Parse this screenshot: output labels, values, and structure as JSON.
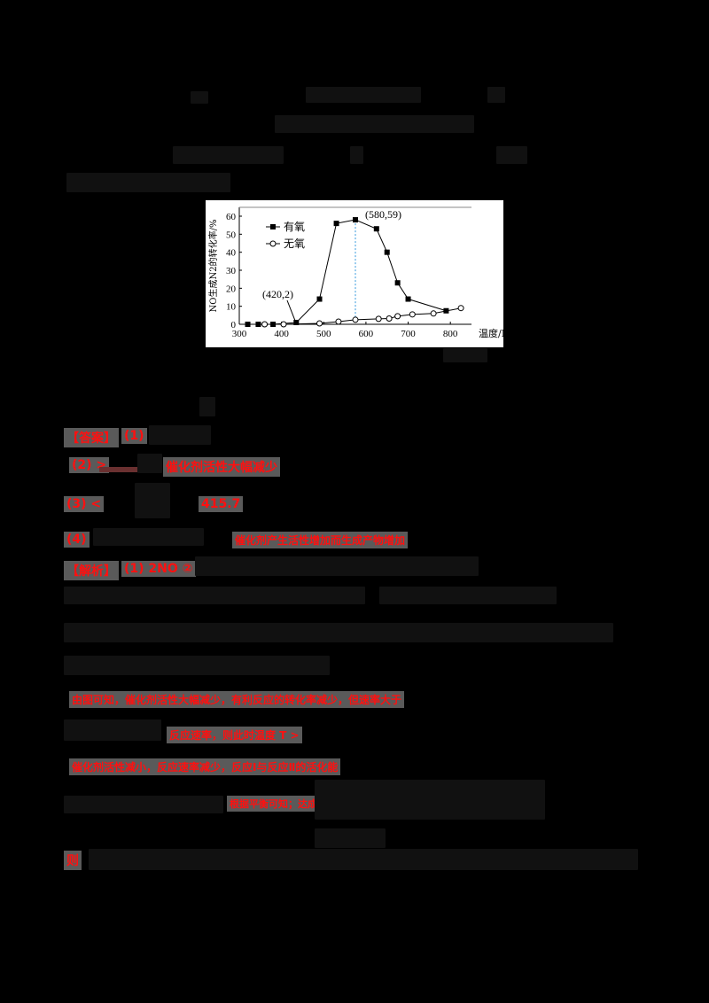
{
  "document": {
    "obscured_note": "Most body text is pixelated/unreadable in the source.",
    "answer_section": {
      "header": "【答案】",
      "items": [
        {
          "label": "(1)",
          "tail": ""
        },
        {
          "label": "(2) >",
          "tail": "催化剂活性大幅减少"
        },
        {
          "label": "(3) <",
          "tail": "415.7"
        },
        {
          "label": "(4)",
          "tail": "催化剂产生活性增加而生成产物增加"
        }
      ]
    },
    "analysis_section": {
      "header": "【解析】",
      "first_label": "(1) 2NO ②",
      "lines": [
        {
          "label": "(2)",
          "text": "由图可知，催化剂活性大幅减少，有利反应的转化率减少，但速率大于"
        },
        {
          "label": "",
          "text": "反应速率，则此时温度 T >"
        },
        {
          "label": "(3)",
          "text": "催化剂活性减小，反应速率减少，反应Ⅰ与反应Ⅱ的活化能"
        },
        {
          "label": "",
          "text": "根据平衡可知；达成平衡常数K"
        },
        {
          "label": "",
          "text": "则"
        }
      ]
    }
  },
  "chart_data": {
    "type": "line",
    "title": "",
    "xlabel": "温度/K",
    "ylabel": "NO生成N2的转化率/%",
    "xlim": [
      300,
      850
    ],
    "ylim": [
      0,
      60
    ],
    "xticks": [
      300,
      400,
      500,
      600,
      700,
      800
    ],
    "yticks": [
      0,
      10,
      20,
      30,
      40,
      50,
      60
    ],
    "legend": [
      {
        "name": "有氧",
        "marker": "filled-square"
      },
      {
        "name": "无氧",
        "marker": "open-circle"
      }
    ],
    "series": [
      {
        "name": "有氧",
        "x": [
          320,
          345,
          380,
          435,
          490,
          530,
          575,
          625,
          650,
          675,
          700,
          790
        ],
        "y": [
          0,
          0,
          0,
          1,
          14,
          56,
          58,
          53,
          40,
          23,
          14,
          7.5
        ]
      },
      {
        "name": "无氧",
        "x": [
          360,
          405,
          490,
          535,
          575,
          630,
          655,
          675,
          710,
          760,
          825
        ],
        "y": [
          0,
          0,
          0.5,
          1.5,
          2.5,
          3,
          3.2,
          4.5,
          5.5,
          6,
          9
        ]
      }
    ],
    "annotations": [
      {
        "text": "(420,2)",
        "x": 420,
        "y": 2
      },
      {
        "text": "(580,59)",
        "x": 580,
        "y": 59
      }
    ],
    "reference_line": {
      "x": 575,
      "style": "dashed",
      "color": "#3399dd"
    }
  }
}
